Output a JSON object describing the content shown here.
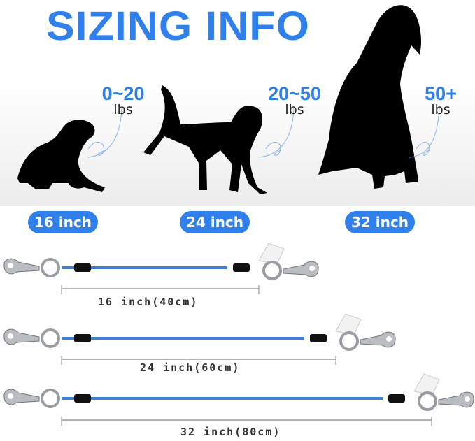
{
  "title": "SIZING INFO",
  "dogs": [
    {
      "weight": "0~20",
      "unit": "lbs",
      "size": "16 inch"
    },
    {
      "weight": "20~50",
      "unit": "lbs",
      "size": "24 inch"
    },
    {
      "weight": "50+",
      "unit": "lbs",
      "size": "32 inch"
    }
  ],
  "leashes": [
    {
      "label": "16 inch(40cm)"
    },
    {
      "label": "24 inch(60cm)"
    },
    {
      "label": "32 inch(80cm)"
    }
  ],
  "colors": {
    "accent": "#2f80ed",
    "cable": "#3f7fd6"
  }
}
